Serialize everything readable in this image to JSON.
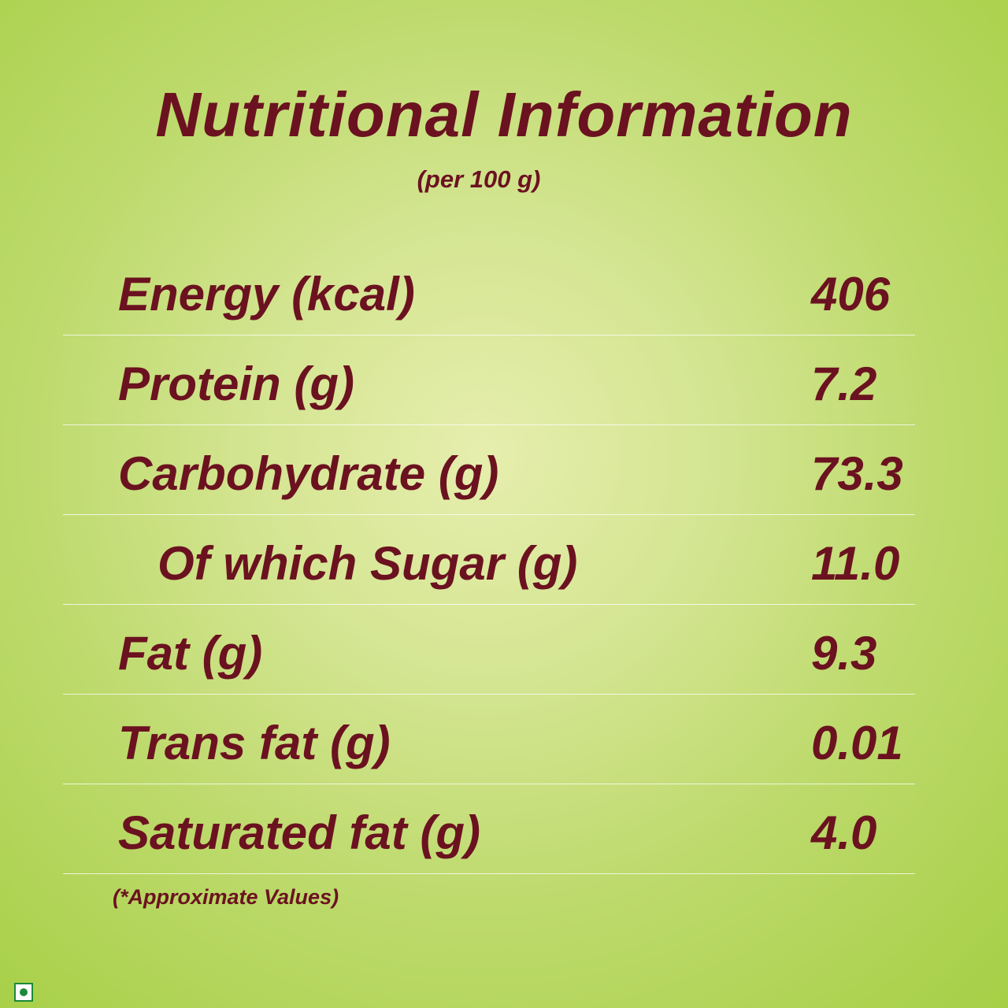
{
  "header": {
    "title": "Nutritional Information",
    "subtitle": "(per 100 g)"
  },
  "table": {
    "rows": [
      [
        "Energy (kcal)",
        "406"
      ],
      [
        "Protein (g)",
        "7.2"
      ],
      [
        "Carbohydrate (g)",
        "73.3"
      ],
      [
        "Of which Sugar (g)",
        "11.0"
      ],
      [
        "Fat (g)",
        "9.3"
      ],
      [
        "Trans fat (g)",
        "0.01"
      ],
      [
        "Saturated fat (g)",
        "4.0"
      ]
    ]
  },
  "footnote": "(*Approximate Values)"
}
